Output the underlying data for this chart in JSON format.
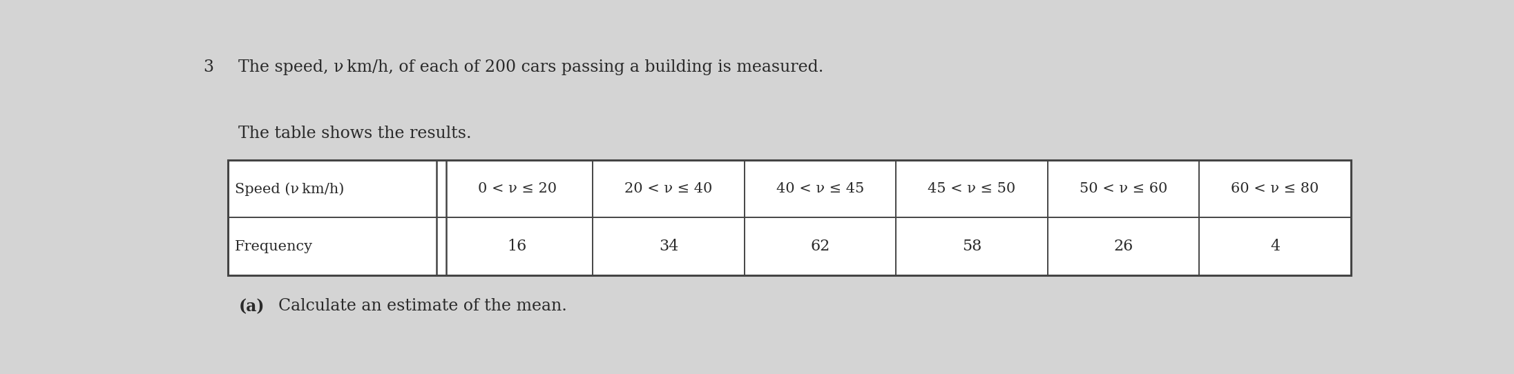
{
  "question_number": "3",
  "intro_line1": "The speed, ν km/h, of each of 200 cars passing a building is measured.",
  "intro_line2": "The table shows the results.",
  "col_headers": [
    "Speed (ν km/h)",
    "0 < ν ≤ 20",
    "20 < ν ≤ 40",
    "40 < ν ≤ 45",
    "45 < ν ≤ 50",
    "50 < ν ≤ 60",
    "60 < ν ≤ 80"
  ],
  "row_label": "Frequency",
  "frequencies": [
    "16",
    "34",
    "62",
    "58",
    "26",
    "4"
  ],
  "sub_question_bold": "(a)",
  "sub_question_normal": "  Calculate an estimate of the mean.",
  "bg_color": "#d4d4d4",
  "table_bg": "#e8e8e8",
  "text_color": "#2a2a2a",
  "table_line_color": "#444444",
  "font_size_intro": 17,
  "font_size_table_header": 15,
  "font_size_table_data": 16,
  "font_size_sub": 17
}
